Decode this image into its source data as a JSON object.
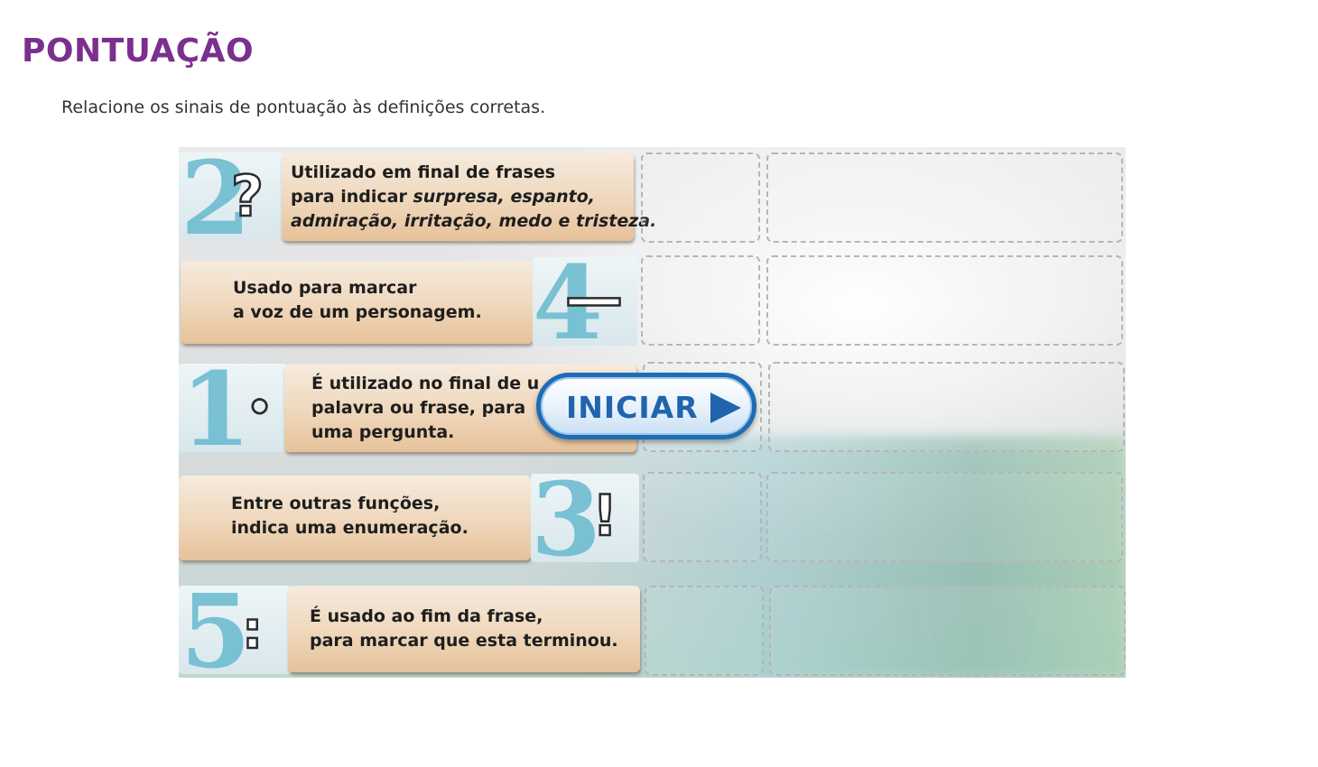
{
  "page": {
    "title": "PONTUAÇÃO",
    "instruction": "Relacione os sinais de pontuação às definições corretas."
  },
  "activity": {
    "start_button_label": "INICIAR",
    "rows": [
      {
        "number": "2",
        "symbol": "?",
        "symbol_icon": "question-mark-icon",
        "line1": "Utilizado em final de frases",
        "line2_plain": "para indicar ",
        "line2_italic": "surpresa, espanto,",
        "line3_italic": "admiração, irritação, medo e tristeza."
      },
      {
        "number": "4",
        "symbol": "—",
        "symbol_icon": "dash-icon",
        "line1": "Usado para marcar",
        "line2": "a voz de um personagem."
      },
      {
        "number": "1",
        "symbol": "○",
        "symbol_icon": "period-icon",
        "line1": "É utilizado no final de u",
        "line2": "palavra ou frase, para",
        "line3": "uma pergunta."
      },
      {
        "number": "3",
        "symbol": "!",
        "symbol_icon": "exclamation-mark-icon",
        "line1": "Entre outras funções,",
        "line2": "indica uma enumeração."
      },
      {
        "number": "5",
        "symbol": ":",
        "symbol_icon": "colon-icon",
        "line1": "É usado ao fim da frase,",
        "line2": "para marcar que esta terminou."
      }
    ]
  }
}
